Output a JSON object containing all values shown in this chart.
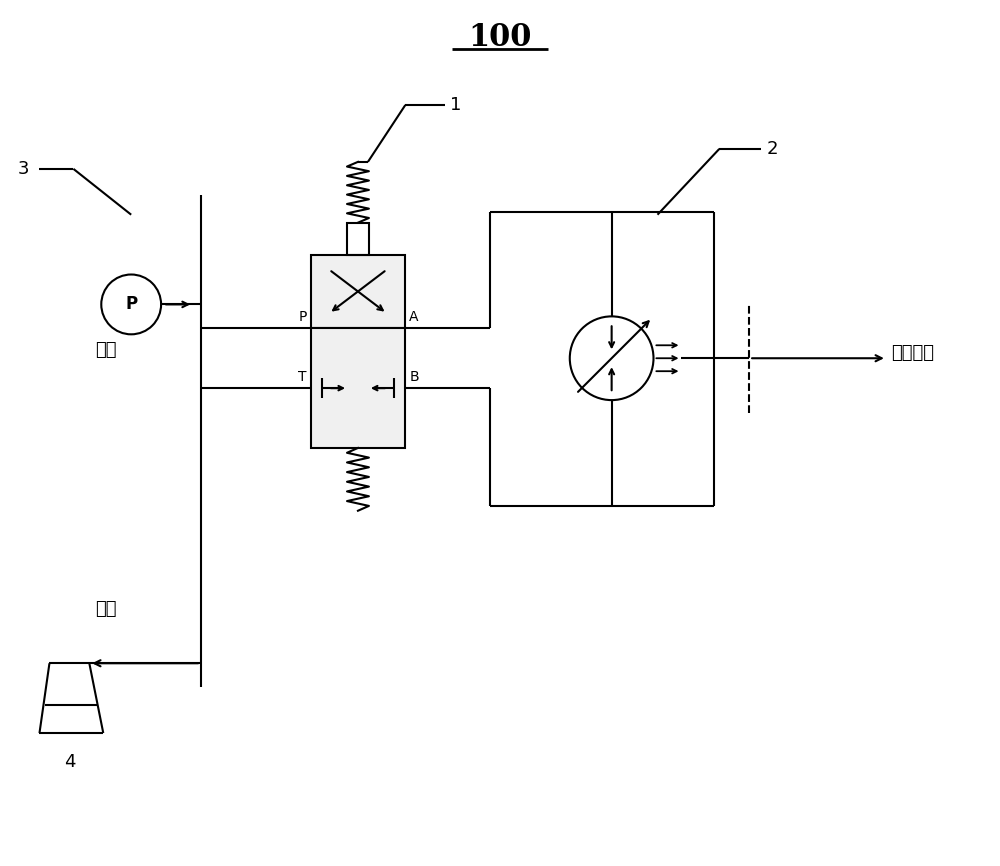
{
  "title": "100",
  "bg_color": "#ffffff",
  "lc": "#000000",
  "lw": 1.5,
  "label_1": "1",
  "label_2": "2",
  "label_3": "3",
  "label_4": "4",
  "text_supply": "供油",
  "text_return": "回油",
  "text_drive": "驱动舱门",
  "pump_label": "P",
  "port_P": "P",
  "port_T": "T",
  "port_A": "A",
  "port_B": "B"
}
